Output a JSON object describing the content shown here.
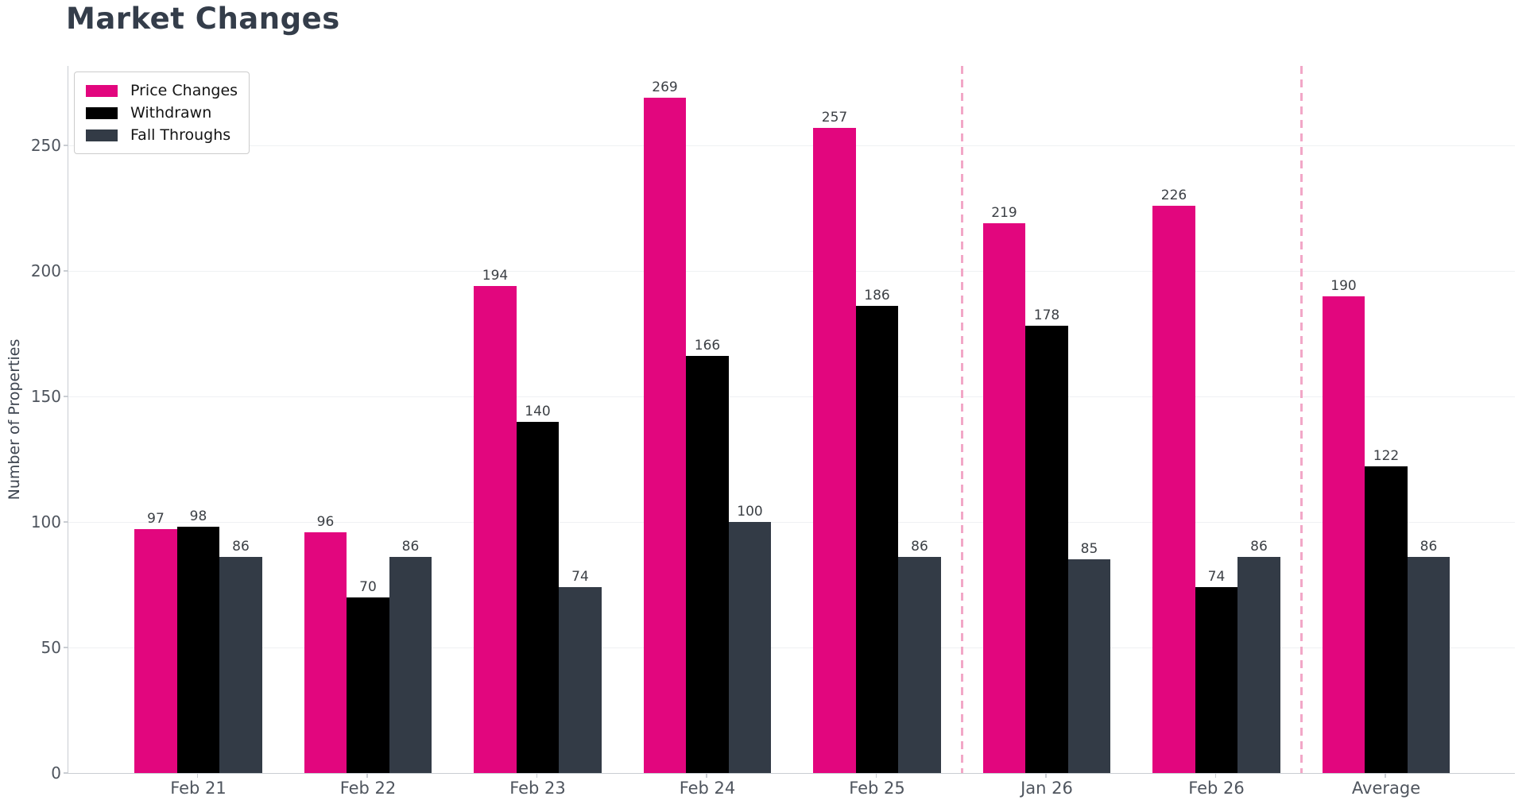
{
  "title": "Market Changes",
  "chart_data": {
    "type": "bar",
    "title": "Market Changes",
    "xlabel": "",
    "ylabel": "Number of Properties",
    "categories": [
      "Feb 21",
      "Feb 22",
      "Feb 23",
      "Feb 24",
      "Feb 25",
      "Jan 26",
      "Feb 26",
      "Average"
    ],
    "series": [
      {
        "name": "Price Changes",
        "color": "#e2067e",
        "values": [
          97,
          96,
          194,
          269,
          257,
          219,
          226,
          190
        ]
      },
      {
        "name": "Withdrawn",
        "color": "#000000",
        "values": [
          98,
          70,
          140,
          166,
          186,
          178,
          74,
          122
        ]
      },
      {
        "name": "Fall Throughs",
        "color": "#333b46",
        "values": [
          86,
          86,
          74,
          100,
          86,
          85,
          86,
          86
        ]
      }
    ],
    "bar_value_labels": true,
    "ylim": [
      0,
      281.6
    ],
    "yticks": [
      0,
      50,
      100,
      150,
      200,
      250
    ],
    "grid": true,
    "legend_position": "upper left",
    "separators_after": [
      "Feb 25",
      "Feb 26"
    ],
    "separator_color": "#f2a7c7"
  }
}
